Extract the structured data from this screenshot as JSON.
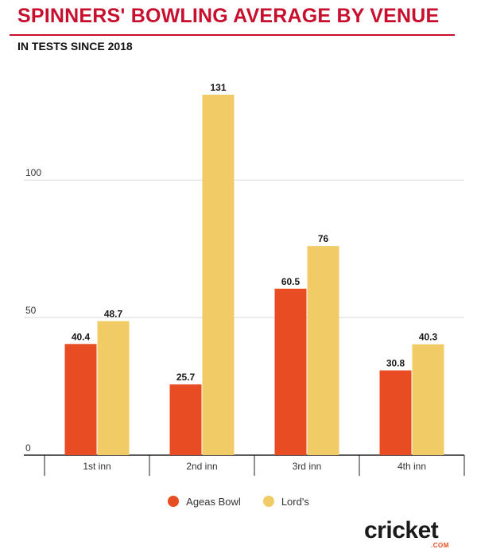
{
  "header": {
    "title": "SPINNERS' BOWLING AVERAGE BY VENUE",
    "subtitle": "IN TESTS SINCE 2018"
  },
  "colors": {
    "accent": "#c8102e",
    "ageas": "#e84c22",
    "lords": "#f0cb66"
  },
  "brand": {
    "logo_text": "cricket",
    "logo_sub": ".COM"
  },
  "chart_data": {
    "type": "bar",
    "categories": [
      "1st inn",
      "2nd inn",
      "3rd inn",
      "4th inn"
    ],
    "series": [
      {
        "name": "Ageas Bowl",
        "color": "#e84c22",
        "values": [
          40.4,
          25.7,
          60.5,
          30.8
        ],
        "labels": [
          "40.4",
          "25.7",
          "60.5",
          "30.8"
        ]
      },
      {
        "name": "Lord's",
        "color": "#f0cb66",
        "values": [
          48.7,
          131,
          76,
          40.3
        ],
        "labels": [
          "48.7",
          "131",
          "76",
          "40.3"
        ]
      }
    ],
    "yticks": [
      0,
      50,
      100
    ],
    "ylim": [
      0,
      140
    ],
    "xlabel": "",
    "ylabel": "",
    "grid": true,
    "legend": "bottom"
  }
}
